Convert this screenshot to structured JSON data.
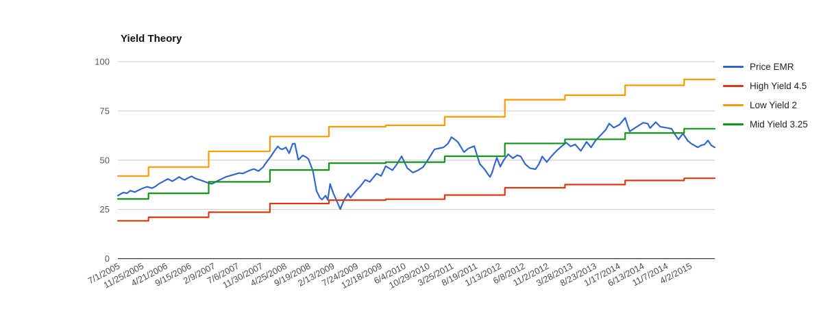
{
  "title": "Yield Theory",
  "legend": {
    "position": "right",
    "items": [
      {
        "label": "Price EMR",
        "color": "#3366cc"
      },
      {
        "label": "High Yield 4.5",
        "color": "#dc3912"
      },
      {
        "label": "Low Yield 2",
        "color": "#ff9900"
      },
      {
        "label": "Mid Yield 3.25",
        "color": "#109618"
      }
    ]
  },
  "colors": {
    "gridline": "#cccccc",
    "zero_line": "#333333",
    "y_axis_text": "#595959",
    "x_axis_text": "#4d4d4d",
    "title_text": "#111111",
    "background": "#ffffff"
  },
  "chart_data": {
    "type": "line",
    "title": "Yield Theory",
    "xlabel": "",
    "ylabel": "",
    "grid": "horizontal",
    "legend_position": "right",
    "ylim": [
      0,
      100
    ],
    "xlim": [
      0,
      526
    ],
    "x_unit": "weeks since 7/1/2005",
    "y_ticks": [
      0,
      25,
      50,
      75,
      100
    ],
    "x_tick_weeks": [
      0,
      21,
      42,
      63,
      84,
      105,
      126,
      147,
      168,
      189,
      210,
      231,
      252,
      273,
      294,
      315,
      336,
      357,
      378,
      399,
      420,
      441,
      462,
      483,
      504
    ],
    "x_tick_labels": [
      "7/1/2005",
      "11/25/2005",
      "4/21/2006",
      "9/15/2006",
      "2/9/2007",
      "7/6/2007",
      "11/30/2007",
      "4/25/2008",
      "9/19/2008",
      "2/13/2009",
      "7/24/2009",
      "12/18/2009",
      "6/4/2010",
      "10/29/2010",
      "3/25/2011",
      "8/19/2011",
      "1/13/2012",
      "6/8/2012",
      "11/2/2012",
      "3/28/2013",
      "8/23/2013",
      "1/17/2014",
      "6/13/2014",
      "11/7/2014",
      "4/2/2015"
    ],
    "series": [
      {
        "name": "Price EMR",
        "color": "#3366cc",
        "style": "line",
        "points": [
          [
            0,
            32
          ],
          [
            3,
            33
          ],
          [
            5,
            33.6
          ],
          [
            8,
            33.2
          ],
          [
            11,
            34.5
          ],
          [
            15,
            33.8
          ],
          [
            19,
            35
          ],
          [
            23,
            36
          ],
          [
            26,
            36.5
          ],
          [
            30,
            35.8
          ],
          [
            33,
            36.6
          ],
          [
            36,
            38
          ],
          [
            40,
            39.2
          ],
          [
            44,
            40.5
          ],
          [
            48,
            39.3
          ],
          [
            51,
            40.4
          ],
          [
            54,
            41.5
          ],
          [
            57,
            40.4
          ],
          [
            59,
            40
          ],
          [
            62,
            41
          ],
          [
            65,
            41.8
          ],
          [
            68,
            40.8
          ],
          [
            71,
            40.2
          ],
          [
            74,
            39.6
          ],
          [
            77,
            39
          ],
          [
            80,
            38.3
          ],
          [
            83,
            38
          ],
          [
            88,
            39.5
          ],
          [
            92,
            40.6
          ],
          [
            95,
            41.5
          ],
          [
            98,
            42
          ],
          [
            101,
            42.5
          ],
          [
            104,
            43
          ],
          [
            107,
            43.5
          ],
          [
            110,
            43.2
          ],
          [
            113,
            44
          ],
          [
            117,
            45
          ],
          [
            120,
            45.5
          ],
          [
            124,
            44.5
          ],
          [
            128,
            46.5
          ],
          [
            131,
            49
          ],
          [
            135,
            52
          ],
          [
            138,
            54.7
          ],
          [
            141,
            57
          ],
          [
            143,
            55.8
          ],
          [
            145,
            55.5
          ],
          [
            148,
            56.5
          ],
          [
            151,
            53.5
          ],
          [
            154,
            58.3
          ],
          [
            156,
            58.4
          ],
          [
            159,
            50.2
          ],
          [
            163,
            52.4
          ],
          [
            166,
            51.5
          ],
          [
            168,
            50.5
          ],
          [
            172,
            44.3
          ],
          [
            175,
            34.5
          ],
          [
            178,
            31
          ],
          [
            180,
            30
          ],
          [
            183,
            32
          ],
          [
            185,
            29.8
          ],
          [
            187,
            38
          ],
          [
            190,
            33
          ],
          [
            192,
            30.5
          ],
          [
            196,
            25.1
          ],
          [
            199,
            29.5
          ],
          [
            203,
            33
          ],
          [
            205,
            31
          ],
          [
            210,
            34.5
          ],
          [
            214,
            37
          ],
          [
            218,
            40
          ],
          [
            222,
            39
          ],
          [
            228,
            43.2
          ],
          [
            232,
            42
          ],
          [
            236,
            47
          ],
          [
            242,
            44.9
          ],
          [
            246,
            48
          ],
          [
            250,
            52
          ],
          [
            255,
            46
          ],
          [
            260,
            43.7
          ],
          [
            265,
            45
          ],
          [
            269,
            46.5
          ],
          [
            273,
            50
          ],
          [
            279,
            55.5
          ],
          [
            283,
            56
          ],
          [
            287,
            56.5
          ],
          [
            291,
            58.5
          ],
          [
            294,
            61.7
          ],
          [
            298,
            60
          ],
          [
            300,
            58.9
          ],
          [
            305,
            54.1
          ],
          [
            309,
            56
          ],
          [
            314,
            57.1
          ],
          [
            319,
            48
          ],
          [
            323,
            45.5
          ],
          [
            326,
            43
          ],
          [
            328,
            41.5
          ],
          [
            330,
            44
          ],
          [
            332,
            48
          ],
          [
            334,
            51.2
          ],
          [
            337,
            46.7
          ],
          [
            340,
            50
          ],
          [
            344,
            53
          ],
          [
            348,
            51
          ],
          [
            352,
            52.5
          ],
          [
            355,
            51.9
          ],
          [
            359,
            48
          ],
          [
            363,
            46
          ],
          [
            368,
            45.4
          ],
          [
            371,
            48
          ],
          [
            374,
            51.9
          ],
          [
            378,
            49
          ],
          [
            382,
            52
          ],
          [
            387,
            55
          ],
          [
            391,
            57
          ],
          [
            395,
            58.9
          ],
          [
            399,
            57
          ],
          [
            403,
            58
          ],
          [
            408,
            54.7
          ],
          [
            413,
            59.3
          ],
          [
            417,
            56.5
          ],
          [
            421,
            60
          ],
          [
            426,
            63
          ],
          [
            430,
            65.5
          ],
          [
            433,
            68.6
          ],
          [
            437,
            66.5
          ],
          [
            442,
            68
          ],
          [
            447,
            71.5
          ],
          [
            451,
            64.6
          ],
          [
            456,
            66.5
          ],
          [
            459,
            67.6
          ],
          [
            463,
            69
          ],
          [
            467,
            68.5
          ],
          [
            469,
            66.3
          ],
          [
            474,
            69.3
          ],
          [
            478,
            67
          ],
          [
            483,
            66.5
          ],
          [
            488,
            65.9
          ],
          [
            491,
            63
          ],
          [
            494,
            60.5
          ],
          [
            498,
            63.5
          ],
          [
            502,
            60
          ],
          [
            505,
            58.5
          ],
          [
            508,
            57.5
          ],
          [
            511,
            56.5
          ],
          [
            514,
            57.5
          ],
          [
            517,
            58
          ],
          [
            520,
            60
          ],
          [
            523,
            57.5
          ],
          [
            526,
            56.5
          ]
        ]
      },
      {
        "name": "High Yield 4.5",
        "color": "#dc3912",
        "style": "step",
        "points": [
          [
            0,
            19.2
          ],
          [
            27,
            19.2
          ],
          [
            27,
            21
          ],
          [
            80,
            21
          ],
          [
            80,
            23.6
          ],
          [
            134,
            23.6
          ],
          [
            134,
            28
          ],
          [
            186,
            28
          ],
          [
            186,
            29.7
          ],
          [
            236,
            29.7
          ],
          [
            236,
            30.2
          ],
          [
            288,
            30.2
          ],
          [
            288,
            32.3
          ],
          [
            341,
            32.3
          ],
          [
            341,
            36
          ],
          [
            394,
            36
          ],
          [
            394,
            37.6
          ],
          [
            447,
            37.6
          ],
          [
            447,
            39.7
          ],
          [
            499,
            39.7
          ],
          [
            499,
            40.8
          ],
          [
            526,
            40.8
          ]
        ]
      },
      {
        "name": "Low Yield 2",
        "color": "#ff9900",
        "style": "step",
        "points": [
          [
            0,
            42
          ],
          [
            27,
            42
          ],
          [
            27,
            46.5
          ],
          [
            80,
            46.5
          ],
          [
            80,
            54.5
          ],
          [
            134,
            54.5
          ],
          [
            134,
            62
          ],
          [
            186,
            62
          ],
          [
            186,
            67
          ],
          [
            236,
            67
          ],
          [
            236,
            67.7
          ],
          [
            288,
            67.7
          ],
          [
            288,
            72
          ],
          [
            341,
            72
          ],
          [
            341,
            80.7
          ],
          [
            394,
            80.7
          ],
          [
            394,
            83
          ],
          [
            447,
            83
          ],
          [
            447,
            88
          ],
          [
            499,
            88
          ],
          [
            499,
            91
          ],
          [
            526,
            91
          ]
        ]
      },
      {
        "name": "Mid Yield 3.25",
        "color": "#109618",
        "style": "step",
        "points": [
          [
            0,
            30.3
          ],
          [
            27,
            30.3
          ],
          [
            27,
            33.2
          ],
          [
            80,
            33.2
          ],
          [
            80,
            39
          ],
          [
            134,
            39
          ],
          [
            134,
            45
          ],
          [
            186,
            45
          ],
          [
            186,
            48.5
          ],
          [
            236,
            48.5
          ],
          [
            236,
            49
          ],
          [
            288,
            49
          ],
          [
            288,
            52
          ],
          [
            341,
            52
          ],
          [
            341,
            58.5
          ],
          [
            394,
            58.5
          ],
          [
            394,
            60.6
          ],
          [
            447,
            60.6
          ],
          [
            447,
            63.8
          ],
          [
            499,
            63.8
          ],
          [
            499,
            66
          ],
          [
            526,
            66
          ]
        ]
      }
    ]
  }
}
